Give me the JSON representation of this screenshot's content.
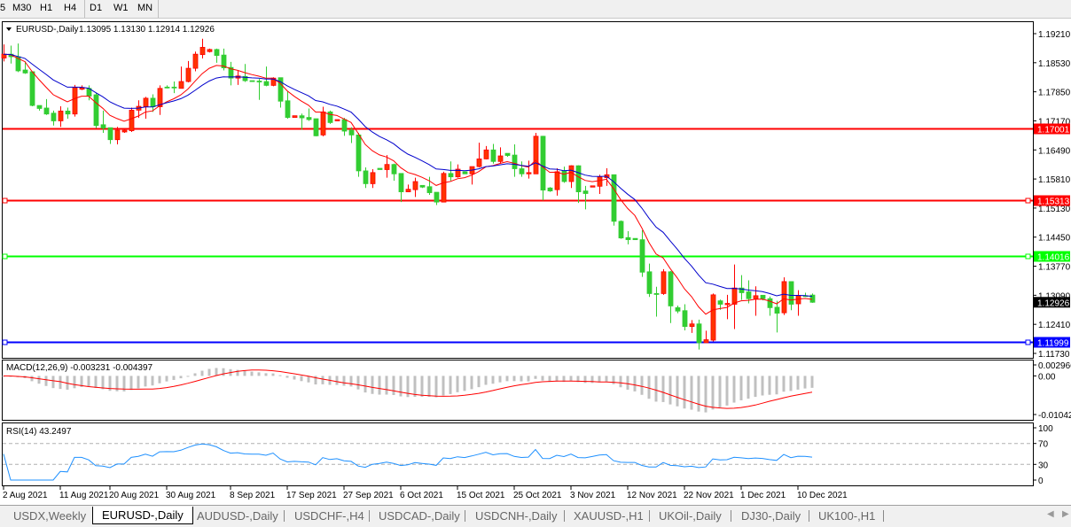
{
  "toolbar": {
    "timeframes": [
      {
        "label": "5"
      },
      {
        "label": "M30"
      },
      {
        "label": "H1"
      },
      {
        "label": "H4"
      },
      {
        "label": "D1",
        "active": true
      },
      {
        "label": "W1"
      },
      {
        "label": "MN"
      }
    ]
  },
  "chart": {
    "symbol_label": "EURUSD-,Daily",
    "ohlc_label": "1.13095 1.13130 1.12914 1.12926",
    "colors": {
      "up": "#ff3300",
      "down": "#32cd32",
      "ma_fast": "#ff0000",
      "ma_slow": "#0000cc",
      "macd_hist": "#c0c0c0",
      "macd_signal": "#ff0000",
      "rsi": "#1e90ff"
    },
    "price_axis": {
      "range": [
        1.1173,
        1.1921
      ],
      "ticks": [
        "1.19210",
        "1.18530",
        "1.17850",
        "1.17170",
        "1.16490",
        "1.15810",
        "1.15130",
        "1.14450",
        "1.13770",
        "1.13090",
        "1.12410",
        "1.11730"
      ]
    },
    "levels": [
      {
        "price": 1.17001,
        "label": "1.17001",
        "color": "#ff0000",
        "markers": false
      },
      {
        "price": 1.15313,
        "label": "1.15313",
        "color": "#ff0000",
        "markers": true
      },
      {
        "price": 1.14016,
        "label": "1.14016",
        "color": "#00ff00",
        "markers": true
      },
      {
        "price": 1.11999,
        "label": "1.11999",
        "color": "#0000ff",
        "markers": true
      }
    ],
    "current_price": {
      "price": 1.12926,
      "label": "1.12926"
    },
    "candles": [
      [
        1.1864,
        1.1896,
        1.1856,
        1.1873
      ],
      [
        1.1873,
        1.1893,
        1.1851,
        1.1867
      ],
      [
        1.1867,
        1.1898,
        1.1831,
        1.1834
      ],
      [
        1.1836,
        1.1856,
        1.1827,
        1.1829
      ],
      [
        1.1832,
        1.1832,
        1.1751,
        1.1753
      ],
      [
        1.1753,
        1.1753,
        1.1741,
        1.1746
      ],
      [
        1.1747,
        1.1768,
        1.1731,
        1.1733
      ],
      [
        1.1735,
        1.1741,
        1.1706,
        1.1717
      ],
      [
        1.1717,
        1.1751,
        1.1703,
        1.174
      ],
      [
        1.174,
        1.1748,
        1.1722,
        1.1733
      ],
      [
        1.1733,
        1.1801,
        1.1727,
        1.1795
      ],
      [
        1.1791,
        1.18,
        1.1789,
        1.1795
      ],
      [
        1.1793,
        1.18,
        1.1765,
        1.1775
      ],
      [
        1.1778,
        1.1782,
        1.17,
        1.1706
      ],
      [
        1.1708,
        1.1741,
        1.1689,
        1.17
      ],
      [
        1.1701,
        1.1701,
        1.1663,
        1.1673
      ],
      [
        1.1673,
        1.1703,
        1.1662,
        1.1695
      ],
      [
        1.1691,
        1.1696,
        1.1689,
        1.1695
      ],
      [
        1.1694,
        1.1748,
        1.1691,
        1.1742
      ],
      [
        1.1742,
        1.1765,
        1.1724,
        1.1751
      ],
      [
        1.175,
        1.1773,
        1.1722,
        1.177
      ],
      [
        1.177,
        1.1779,
        1.1738,
        1.175
      ],
      [
        1.175,
        1.18,
        1.1731,
        1.1793
      ],
      [
        1.1796,
        1.18,
        1.1793,
        1.1795
      ],
      [
        1.1796,
        1.1809,
        1.1782,
        1.1794
      ],
      [
        1.1793,
        1.1844,
        1.1793,
        1.1809
      ],
      [
        1.1809,
        1.1857,
        1.1807,
        1.184
      ],
      [
        1.184,
        1.1879,
        1.1833,
        1.1873
      ],
      [
        1.1872,
        1.1909,
        1.1863,
        1.1889
      ],
      [
        1.1879,
        1.1886,
        1.1877,
        1.1884
      ],
      [
        1.1884,
        1.1886,
        1.1853,
        1.187
      ],
      [
        1.1871,
        1.1886,
        1.1835,
        1.1841
      ],
      [
        1.1842,
        1.1855,
        1.18,
        1.1817
      ],
      [
        1.1817,
        1.1834,
        1.1801,
        1.1822
      ],
      [
        1.1821,
        1.185,
        1.1808,
        1.1811
      ],
      [
        1.1811,
        1.1811,
        1.1809,
        1.1809
      ],
      [
        1.181,
        1.1815,
        1.1766,
        1.1809
      ],
      [
        1.1809,
        1.1844,
        1.1798,
        1.18
      ],
      [
        1.18,
        1.1819,
        1.1798,
        1.1817
      ],
      [
        1.1818,
        1.1818,
        1.1748,
        1.1763
      ],
      [
        1.1764,
        1.1787,
        1.1722,
        1.1725
      ],
      [
        1.1725,
        1.1729,
        1.1725,
        1.1729
      ],
      [
        1.1729,
        1.1734,
        1.1696,
        1.1724
      ],
      [
        1.1725,
        1.1746,
        1.1717,
        1.172
      ],
      [
        1.1722,
        1.1722,
        1.1681,
        1.1682
      ],
      [
        1.1684,
        1.175,
        1.1681,
        1.1738
      ],
      [
        1.1738,
        1.1741,
        1.171,
        1.1713
      ],
      [
        1.1717,
        1.172,
        1.1717,
        1.172
      ],
      [
        1.172,
        1.1724,
        1.1682,
        1.1693
      ],
      [
        1.1695,
        1.1702,
        1.1665,
        1.1684
      ],
      [
        1.1684,
        1.1689,
        1.1586,
        1.16
      ],
      [
        1.16,
        1.1608,
        1.156,
        1.157
      ],
      [
        1.157,
        1.1604,
        1.156,
        1.1596
      ],
      [
        1.1606,
        1.1606,
        1.1603,
        1.1603
      ],
      [
        1.1603,
        1.1637,
        1.1584,
        1.1615
      ],
      [
        1.1615,
        1.1617,
        1.1577,
        1.1593
      ],
      [
        1.1594,
        1.1594,
        1.1527,
        1.1551
      ],
      [
        1.1551,
        1.1568,
        1.155,
        1.1557
      ],
      [
        1.1556,
        1.1584,
        1.1539,
        1.1575
      ],
      [
        1.1566,
        1.1566,
        1.156,
        1.1562
      ],
      [
        1.1563,
        1.1586,
        1.1544,
        1.1549
      ],
      [
        1.155,
        1.155,
        1.152,
        1.1527
      ],
      [
        1.1527,
        1.1598,
        1.1527,
        1.1594
      ],
      [
        1.1594,
        1.1622,
        1.1577,
        1.1586
      ],
      [
        1.1586,
        1.1615,
        1.1584,
        1.1604
      ],
      [
        1.1598,
        1.1598,
        1.1593,
        1.1593
      ],
      [
        1.1593,
        1.161,
        1.1568,
        1.161
      ],
      [
        1.161,
        1.1666,
        1.1608,
        1.1628
      ],
      [
        1.1628,
        1.1658,
        1.1627,
        1.1649
      ],
      [
        1.1649,
        1.1663,
        1.1617,
        1.1622
      ],
      [
        1.1622,
        1.1655,
        1.1617,
        1.1635
      ],
      [
        1.1641,
        1.1641,
        1.1633,
        1.1636
      ],
      [
        1.1637,
        1.1662,
        1.1586,
        1.1605
      ],
      [
        1.1605,
        1.1622,
        1.1586,
        1.1593
      ],
      [
        1.1593,
        1.1624,
        1.1582,
        1.1596
      ],
      [
        1.1593,
        1.1689,
        1.1593,
        1.1681
      ],
      [
        1.1681,
        1.1682,
        1.1531,
        1.1555
      ],
      [
        1.156,
        1.1562,
        1.1551,
        1.1553
      ],
      [
        1.1556,
        1.1606,
        1.1542,
        1.1598
      ],
      [
        1.16,
        1.161,
        1.1572,
        1.1575
      ],
      [
        1.1575,
        1.1613,
        1.156,
        1.1612
      ],
      [
        1.1612,
        1.1613,
        1.1525,
        1.1551
      ],
      [
        1.1553,
        1.1565,
        1.151,
        1.1547
      ],
      [
        1.1562,
        1.1565,
        1.1562,
        1.1565
      ],
      [
        1.1564,
        1.1591,
        1.1546,
        1.1586
      ],
      [
        1.1584,
        1.1606,
        1.1565,
        1.1591
      ],
      [
        1.1591,
        1.1591,
        1.1472,
        1.1482
      ],
      [
        1.1482,
        1.1484,
        1.1441,
        1.1443
      ],
      [
        1.1444,
        1.1459,
        1.1428,
        1.1439
      ],
      [
        1.1442,
        1.1442,
        1.1439,
        1.1439
      ],
      [
        1.1439,
        1.1461,
        1.1352,
        1.1363
      ],
      [
        1.1364,
        1.1383,
        1.1305,
        1.1313
      ],
      [
        1.1313,
        1.1329,
        1.1259,
        1.1312
      ],
      [
        1.1313,
        1.137,
        1.131,
        1.1364
      ],
      [
        1.1364,
        1.1366,
        1.1244,
        1.1284
      ],
      [
        1.128,
        1.1285,
        1.1267,
        1.1272
      ],
      [
        1.1273,
        1.1288,
        1.1227,
        1.1236
      ],
      [
        1.1236,
        1.1251,
        1.1221,
        1.1242
      ],
      [
        1.1242,
        1.1252,
        1.1182,
        1.1198
      ],
      [
        1.1198,
        1.1226,
        1.1198,
        1.1205
      ],
      [
        1.1204,
        1.1313,
        1.1201,
        1.131
      ],
      [
        1.1296,
        1.1299,
        1.1275,
        1.1288
      ],
      [
        1.1287,
        1.131,
        1.1253,
        1.129
      ],
      [
        1.1288,
        1.1381,
        1.123,
        1.1326
      ],
      [
        1.1326,
        1.1356,
        1.1298,
        1.1315
      ],
      [
        1.1317,
        1.1344,
        1.129,
        1.1301
      ],
      [
        1.1301,
        1.133,
        1.1261,
        1.1308
      ],
      [
        1.1309,
        1.1309,
        1.1297,
        1.1301
      ],
      [
        1.1301,
        1.1306,
        1.1261,
        1.128
      ],
      [
        1.1281,
        1.1296,
        1.1222,
        1.1267
      ],
      [
        1.1268,
        1.1351,
        1.1263,
        1.1341
      ],
      [
        1.1341,
        1.1341,
        1.1274,
        1.1288
      ],
      [
        1.1289,
        1.1321,
        1.1261,
        1.1308
      ],
      [
        1.1308,
        1.1315,
        1.1305,
        1.1306
      ],
      [
        1.13095,
        1.1313,
        1.12914,
        1.12926
      ]
    ],
    "date_ticks": [
      {
        "bar": 0,
        "label": "2 Aug 2021"
      },
      {
        "bar": 8,
        "label": "11 Aug 2021"
      },
      {
        "bar": 15,
        "label": "20 Aug 2021"
      },
      {
        "bar": 23,
        "label": "30 Aug 2021"
      },
      {
        "bar": 32,
        "label": "8 Sep 2021"
      },
      {
        "bar": 40,
        "label": "17 Sep 2021"
      },
      {
        "bar": 48,
        "label": "27 Sep 2021"
      },
      {
        "bar": 56,
        "label": "6 Oct 2021"
      },
      {
        "bar": 64,
        "label": "15 Oct 2021"
      },
      {
        "bar": 72,
        "label": "25 Oct 2021"
      },
      {
        "bar": 80,
        "label": "3 Nov 2021"
      },
      {
        "bar": 88,
        "label": "12 Nov 2021"
      },
      {
        "bar": 96,
        "label": "22 Nov 2021"
      },
      {
        "bar": 104,
        "label": "1 Dec 2021"
      },
      {
        "bar": 112,
        "label": "10 Dec 2021"
      }
    ]
  },
  "macd": {
    "label": "MACD(12,26,9) -0.003231 -0.004397",
    "axis": {
      "max": 0.002966,
      "zero": 0.0,
      "min": -0.010422,
      "labels": [
        "0.002966",
        "0.00",
        "-0.010422"
      ]
    }
  },
  "rsi": {
    "label": "RSI(14) 43.2497",
    "axis": {
      "labels": [
        "100",
        "70",
        "30",
        "0"
      ],
      "levels": [
        70,
        30
      ]
    }
  },
  "tabs": [
    {
      "label": "USDX,Weekly"
    },
    {
      "label": "EURUSD-,Daily",
      "active": true
    },
    {
      "label": "AUDUSD-,Daily"
    },
    {
      "label": "USDCHF-,H4"
    },
    {
      "label": "USDCAD-,Daily"
    },
    {
      "label": "USDCNH-,Daily"
    },
    {
      "label": "XAUUSD-,H1"
    },
    {
      "label": "UKOil-,Daily"
    },
    {
      "label": "DJ30-,Daily"
    },
    {
      "label": "UK100-,H1"
    }
  ],
  "scroll": {
    "left_icon": "triangle-left",
    "right_icon": "triangle-right"
  }
}
